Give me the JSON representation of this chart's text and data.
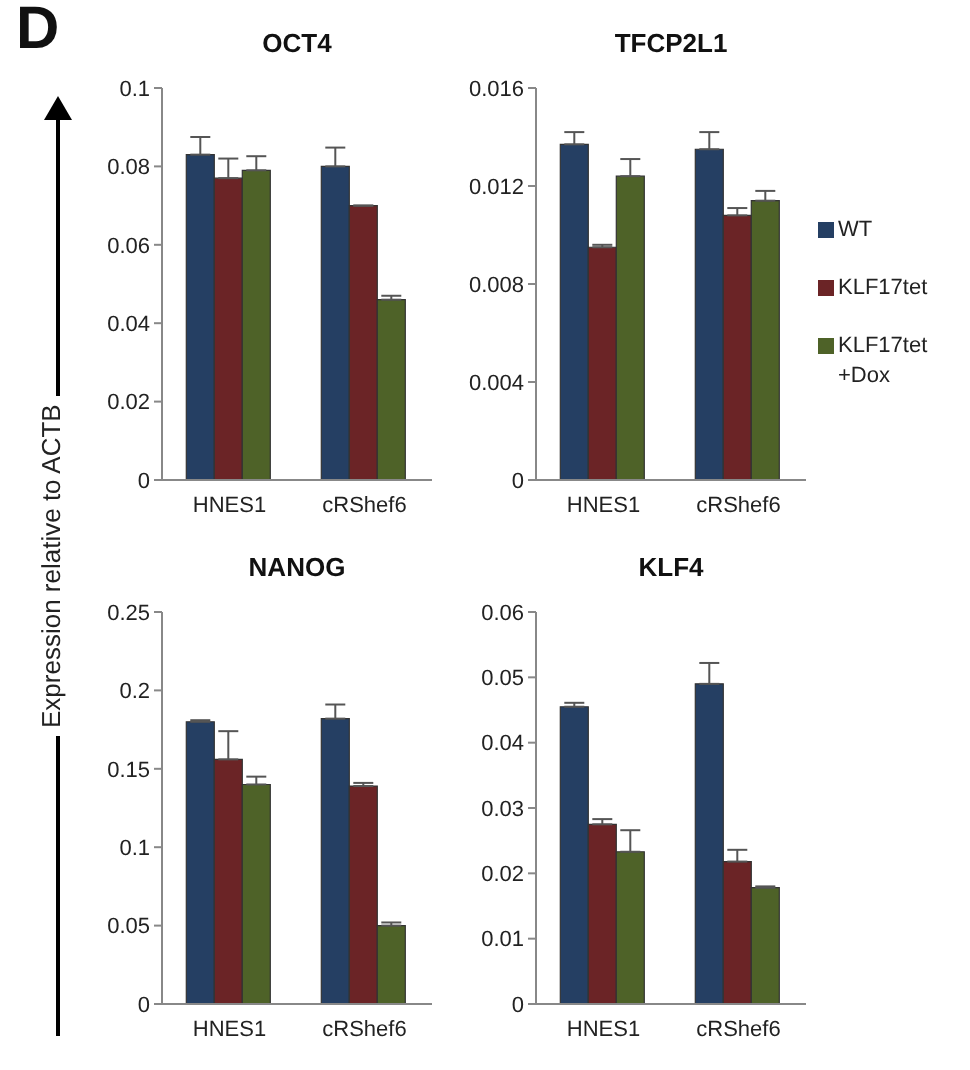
{
  "chart_data": [
    {
      "type": "bar",
      "title": "OCT4",
      "ylabel": "Expression relative to ACTB",
      "annotations": [
        "D"
      ],
      "categories": [
        "HNES1",
        "cRShef6"
      ],
      "ylim": [
        0,
        0.1
      ],
      "yticks": [
        0,
        0.02,
        0.04,
        0.06,
        0.08,
        0.1
      ],
      "legend": false,
      "series": [
        {
          "color": "#253f63",
          "values": [
            0.083,
            0.08
          ],
          "errors": [
            [
              0.083,
              0.0875
            ],
            [
              0.08,
              0.0848
            ]
          ]
        },
        {
          "color": "#6b2426",
          "values": [
            0.077,
            0.07
          ],
          "errors": [
            [
              0.077,
              0.082
            ],
            null
          ]
        },
        {
          "color": "#4e6228",
          "values": [
            0.079,
            0.046
          ],
          "errors": [
            [
              0.079,
              0.0826
            ],
            [
              0.046,
              0.047
            ]
          ]
        }
      ]
    },
    {
      "type": "bar",
      "title": "TFCP2L1",
      "categories": [
        "HNES1",
        "cRShef6"
      ],
      "ylim": [
        0,
        0.016
      ],
      "yticks": [
        0,
        0.004,
        0.008,
        0.012,
        0.016
      ],
      "legend": "right",
      "series": [
        {
          "name": "WT",
          "color": "#253f63",
          "values": [
            0.0137,
            0.0135
          ],
          "errors": [
            [
              0.0137,
              0.0142
            ],
            [
              0.0135,
              0.0142
            ]
          ]
        },
        {
          "name": "KLF17tet",
          "color": "#6b2426",
          "values": [
            0.0095,
            0.0108
          ],
          "errors": [
            [
              0.0095,
              0.0096
            ],
            [
              0.0108,
              0.0111
            ]
          ]
        },
        {
          "name": "KLF17tet +Dox",
          "color": "#4e6228",
          "values": [
            0.0124,
            0.0114
          ],
          "errors": [
            [
              0.0124,
              0.0131
            ],
            [
              0.0114,
              0.0118
            ]
          ]
        }
      ]
    },
    {
      "type": "bar",
      "title": "NANOG",
      "categories": [
        "HNES1",
        "cRShef6"
      ],
      "ylim": [
        0,
        0.25
      ],
      "yticks": [
        0,
        0.05,
        0.1,
        0.15,
        0.2,
        0.25
      ],
      "legend": false,
      "series": [
        {
          "color": "#253f63",
          "values": [
            0.18,
            0.182
          ],
          "errors": [
            [
              0.18,
              0.181
            ],
            [
              0.182,
              0.191
            ]
          ]
        },
        {
          "color": "#6b2426",
          "values": [
            0.156,
            0.139
          ],
          "errors": [
            [
              0.156,
              0.174
            ],
            [
              0.139,
              0.141
            ]
          ]
        },
        {
          "color": "#4e6228",
          "values": [
            0.14,
            0.05
          ],
          "errors": [
            [
              0.14,
              0.145
            ],
            [
              0.05,
              0.052
            ]
          ]
        }
      ]
    },
    {
      "type": "bar",
      "title": "KLF4",
      "categories": [
        "HNES1",
        "cRShef6"
      ],
      "ylim": [
        0,
        0.06
      ],
      "yticks": [
        0,
        0.01,
        0.02,
        0.03,
        0.04,
        0.05,
        0.06
      ],
      "legend": false,
      "series": [
        {
          "color": "#253f63",
          "values": [
            0.0455,
            0.049
          ],
          "errors": [
            [
              0.0455,
              0.0461
            ],
            [
              0.049,
              0.0522
            ]
          ]
        },
        {
          "color": "#6b2426",
          "values": [
            0.0275,
            0.0218
          ],
          "errors": [
            [
              0.0275,
              0.0283
            ],
            [
              0.0218,
              0.0236
            ]
          ]
        },
        {
          "color": "#4e6228",
          "values": [
            0.0233,
            0.0178
          ],
          "errors": [
            [
              0.0233,
              0.0266
            ],
            [
              0.0178,
              0.018
            ]
          ]
        }
      ]
    }
  ]
}
